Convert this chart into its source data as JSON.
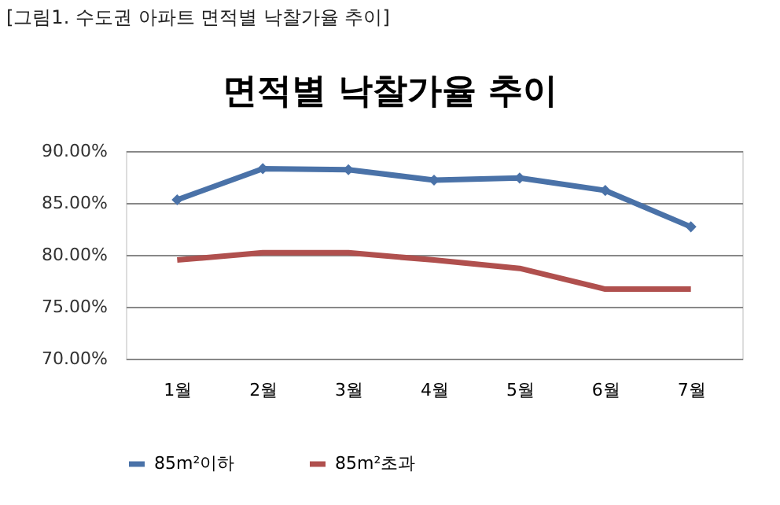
{
  "chart_data": {
    "type": "line",
    "title": "면적별 낙찰가율 추이",
    "annotations": [
      "[그림1. 수도권 아파트 면적별 낙찰가율 추이]"
    ],
    "categories": [
      "1월",
      "2월",
      "3월",
      "4월",
      "5월",
      "6월",
      "7월"
    ],
    "series": [
      {
        "name": "85m²이하",
        "color": "#4a72a8",
        "marker": "diamond",
        "values": [
          85.3,
          88.3,
          88.2,
          87.2,
          87.4,
          86.2,
          82.7
        ]
      },
      {
        "name": "85m²초과",
        "color": "#b0504e",
        "marker": "none",
        "values": [
          79.5,
          80.2,
          80.2,
          79.5,
          78.7,
          76.7,
          76.7
        ]
      }
    ],
    "ylim": [
      70,
      90
    ],
    "yticks": [
      {
        "value": 70,
        "label": "70.00%"
      },
      {
        "value": 75,
        "label": "75.00%"
      },
      {
        "value": 80,
        "label": "80.00%"
      },
      {
        "value": 85,
        "label": "85.00%"
      },
      {
        "value": 90,
        "label": "90.00%"
      }
    ],
    "grid": "y",
    "legend": "bottom",
    "line_style": "solid"
  }
}
